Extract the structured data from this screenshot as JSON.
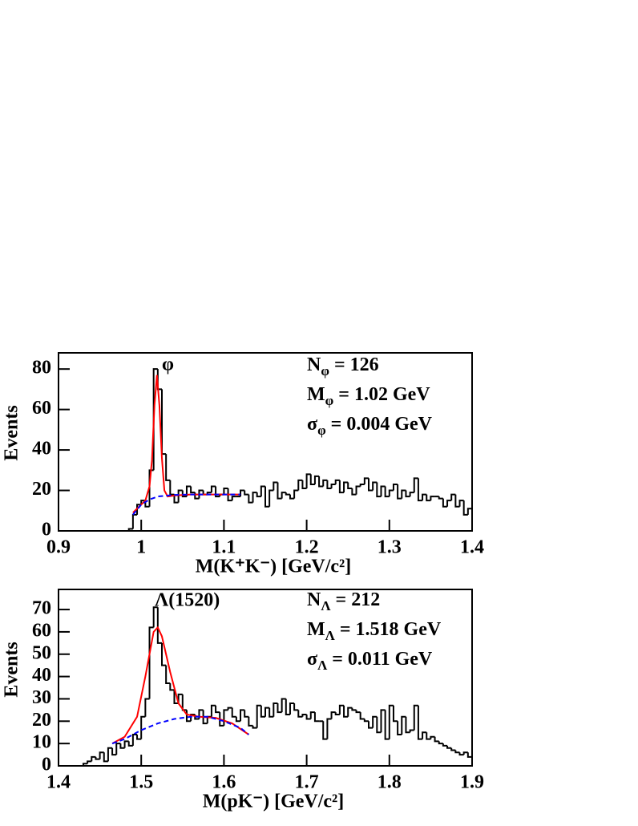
{
  "chart_data": [
    {
      "type": "histogram",
      "y_label": "Events",
      "x_label": "M(K⁺K⁻) [GeV/c²]",
      "peak_label": "φ",
      "annotations": [
        {
          "symbol": "N",
          "subscript": "φ",
          "text": "= 126"
        },
        {
          "symbol": "M",
          "subscript": "φ",
          "text": "= 1.02 GeV"
        },
        {
          "symbol": "σ",
          "subscript": "φ",
          "text": "= 0.004 GeV"
        }
      ],
      "xlim": [
        0.9,
        1.4
      ],
      "ylim": [
        0,
        88
      ],
      "xticks": [
        0.9,
        1,
        1.1,
        1.2,
        1.3,
        1.4
      ],
      "yticks": [
        0,
        20,
        40,
        60,
        80
      ],
      "color": "#000000",
      "bins": [
        0.98,
        0.985,
        0.99,
        0.995,
        1.0,
        1.005,
        1.01,
        1.015,
        1.02,
        1.025,
        1.03,
        1.035,
        1.04,
        1.045,
        1.05,
        1.055,
        1.06,
        1.065,
        1.07,
        1.075,
        1.08,
        1.085,
        1.09,
        1.095,
        1.1,
        1.105,
        1.11,
        1.115,
        1.12,
        1.125,
        1.13,
        1.135,
        1.14,
        1.145,
        1.15,
        1.155,
        1.16,
        1.165,
        1.17,
        1.175,
        1.18,
        1.185,
        1.19,
        1.195,
        1.2,
        1.205,
        1.21,
        1.215,
        1.22,
        1.225,
        1.23,
        1.235,
        1.24,
        1.245,
        1.25,
        1.255,
        1.26,
        1.265,
        1.27,
        1.275,
        1.28,
        1.285,
        1.29,
        1.295,
        1.3,
        1.305,
        1.31,
        1.315,
        1.32,
        1.325,
        1.33,
        1.335,
        1.34,
        1.345,
        1.35,
        1.355,
        1.36,
        1.365,
        1.37,
        1.375,
        1.38,
        1.385,
        1.39,
        1.395,
        1.4
      ],
      "values": [
        0,
        1,
        8,
        13,
        15,
        12,
        30,
        80,
        70,
        38,
        25,
        18,
        14,
        20,
        17,
        22,
        19,
        16,
        20,
        18,
        19,
        22,
        17,
        18,
        21,
        15,
        17,
        17,
        20,
        18,
        14,
        19,
        17,
        22,
        12,
        20,
        24,
        16,
        19,
        18,
        16,
        20,
        25,
        21,
        28,
        23,
        27,
        22,
        25,
        21,
        23,
        25,
        19,
        24,
        21,
        18,
        22,
        23,
        26,
        20,
        24,
        17,
        22,
        17,
        20,
        23,
        16,
        20,
        17,
        19,
        26,
        15,
        18,
        15,
        17,
        17,
        16,
        12,
        15,
        18,
        12,
        15,
        8,
        11
      ],
      "curves": [
        {
          "color": "#ff0000",
          "style": "solid",
          "x": [
            0.99,
            1.0,
            1.005,
            1.01,
            1.013,
            1.016,
            1.019,
            1.022,
            1.025,
            1.028,
            1.032,
            1.04,
            1.06,
            1.08,
            1.1,
            1.12
          ],
          "values": [
            9,
            13,
            15,
            22,
            35,
            62,
            77,
            62,
            36,
            20,
            17,
            17.5,
            18,
            18,
            18,
            18
          ]
        },
        {
          "color": "#0000ff",
          "style": "dashed",
          "x": [
            0.99,
            1.0,
            1.01,
            1.02,
            1.04,
            1.06,
            1.08,
            1.1,
            1.12
          ],
          "values": [
            8,
            13,
            15.5,
            17,
            17.8,
            18,
            18,
            18,
            18
          ]
        }
      ]
    },
    {
      "type": "histogram",
      "y_label": "Events",
      "x_label": "M(pK⁻) [GeV/c²]",
      "peak_label": "Λ(1520)",
      "annotations": [
        {
          "symbol": "N",
          "subscript": "Λ",
          "text": "= 212"
        },
        {
          "symbol": "M",
          "subscript": "Λ",
          "text": "= 1.518 GeV"
        },
        {
          "symbol": "σ",
          "subscript": "Λ",
          "text": "= 0.011 GeV"
        }
      ],
      "xlim": [
        1.4,
        1.9
      ],
      "ylim": [
        0,
        79
      ],
      "xticks": [
        1.4,
        1.5,
        1.6,
        1.7,
        1.8,
        1.9
      ],
      "yticks": [
        0,
        10,
        20,
        30,
        40,
        50,
        60,
        70
      ],
      "color": "#000000",
      "bins": [
        1.43,
        1.435,
        1.44,
        1.445,
        1.45,
        1.455,
        1.46,
        1.465,
        1.47,
        1.475,
        1.48,
        1.485,
        1.49,
        1.495,
        1.5,
        1.505,
        1.51,
        1.515,
        1.52,
        1.525,
        1.53,
        1.535,
        1.54,
        1.545,
        1.55,
        1.555,
        1.56,
        1.565,
        1.57,
        1.575,
        1.58,
        1.585,
        1.59,
        1.595,
        1.6,
        1.605,
        1.61,
        1.615,
        1.62,
        1.625,
        1.63,
        1.635,
        1.64,
        1.645,
        1.65,
        1.655,
        1.66,
        1.665,
        1.67,
        1.675,
        1.68,
        1.685,
        1.69,
        1.695,
        1.7,
        1.705,
        1.71,
        1.715,
        1.72,
        1.725,
        1.73,
        1.735,
        1.74,
        1.745,
        1.75,
        1.755,
        1.76,
        1.765,
        1.77,
        1.775,
        1.78,
        1.785,
        1.79,
        1.795,
        1.8,
        1.805,
        1.81,
        1.815,
        1.82,
        1.825,
        1.83,
        1.835,
        1.84,
        1.845,
        1.85,
        1.855,
        1.86,
        1.865,
        1.87,
        1.875,
        1.88,
        1.885,
        1.89,
        1.895,
        1.9
      ],
      "values": [
        1,
        2,
        4,
        3,
        6,
        2,
        8,
        5,
        10,
        8,
        11,
        9,
        14,
        12,
        22,
        30,
        62,
        71,
        55,
        45,
        37,
        34,
        28,
        32,
        25,
        20,
        23,
        21,
        25,
        19,
        22,
        27,
        24,
        18,
        25,
        26,
        22,
        20,
        25,
        22,
        18,
        17,
        27,
        22,
        26,
        22,
        28,
        24,
        30,
        23,
        28,
        25,
        22,
        23,
        21,
        24,
        20,
        20,
        12,
        21,
        24,
        23,
        27,
        22,
        26,
        25,
        24,
        21,
        20,
        17,
        22,
        15,
        25,
        12,
        27,
        20,
        14,
        22,
        15,
        16,
        27,
        12,
        15,
        12,
        13,
        11,
        10,
        9,
        8,
        7,
        6,
        5,
        6,
        4
      ],
      "curves": [
        {
          "color": "#ff0000",
          "style": "solid",
          "x": [
            1.465,
            1.48,
            1.495,
            1.505,
            1.515,
            1.52,
            1.525,
            1.535,
            1.545,
            1.555,
            1.57,
            1.59,
            1.61,
            1.63
          ],
          "values": [
            10,
            13,
            22,
            40,
            60,
            62,
            58,
            42,
            28,
            23,
            22,
            21.5,
            19,
            14
          ]
        },
        {
          "color": "#0000ff",
          "style": "dashed",
          "x": [
            1.465,
            1.48,
            1.5,
            1.52,
            1.54,
            1.56,
            1.58,
            1.6,
            1.62,
            1.63
          ],
          "values": [
            10,
            12,
            16,
            19,
            21,
            22,
            22,
            20,
            17,
            14
          ]
        }
      ]
    }
  ]
}
